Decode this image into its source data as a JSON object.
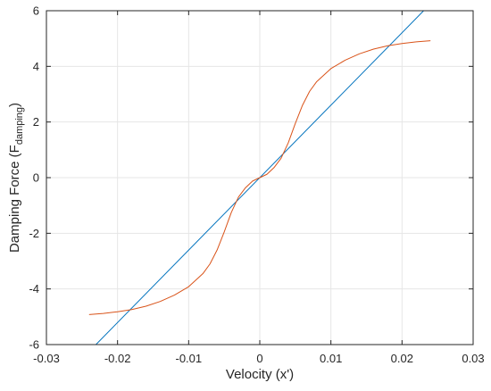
{
  "chart_data": {
    "type": "line",
    "title": "",
    "xlabel": "Velocity (x')",
    "ylabel_main": "Damping Force (F",
    "ylabel_sub": "damping",
    "ylabel_end": ")",
    "xlim": [
      -0.03,
      0.03
    ],
    "ylim": [
      -6,
      6
    ],
    "grid": true,
    "x_ticks": [
      -0.03,
      -0.02,
      -0.01,
      0,
      0.01,
      0.02,
      0.03
    ],
    "x_tick_labels": [
      "-0.03",
      "-0.02",
      "-0.01",
      "0",
      "0.01",
      "0.02",
      "0.03"
    ],
    "y_ticks": [
      -6,
      -4,
      -2,
      0,
      2,
      4,
      6
    ],
    "y_tick_labels": [
      "-6",
      "-4",
      "-2",
      "0",
      "2",
      "4",
      "6"
    ],
    "series": [
      {
        "color": "#0072BD",
        "x": [
          -0.024,
          0.024
        ],
        "y": [
          -6.25,
          6.25
        ]
      },
      {
        "color": "#D95319",
        "x": [
          -0.024,
          -0.022,
          -0.02,
          -0.018,
          -0.016,
          -0.014,
          -0.012,
          -0.01,
          -0.008,
          -0.007,
          -0.006,
          -0.005,
          -0.004,
          -0.003,
          -0.002,
          -0.001,
          0,
          0.001,
          0.002,
          0.003,
          0.004,
          0.005,
          0.006,
          0.007,
          0.008,
          0.01,
          0.012,
          0.014,
          0.016,
          0.018,
          0.02,
          0.022,
          0.024
        ],
        "y": [
          -4.92,
          -4.88,
          -4.82,
          -4.74,
          -4.62,
          -4.45,
          -4.22,
          -3.92,
          -3.45,
          -3.1,
          -2.6,
          -1.95,
          -1.25,
          -0.7,
          -0.36,
          -0.12,
          0,
          0.12,
          0.36,
          0.7,
          1.25,
          1.95,
          2.6,
          3.1,
          3.45,
          3.92,
          4.22,
          4.45,
          4.62,
          4.74,
          4.82,
          4.88,
          4.92
        ]
      }
    ]
  }
}
